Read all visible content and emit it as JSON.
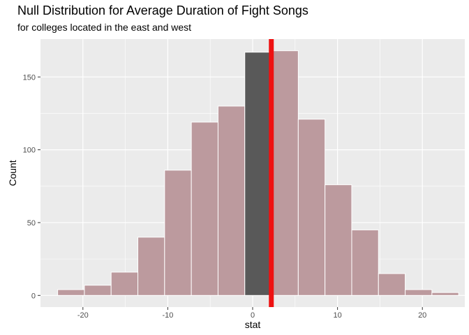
{
  "chart_data": {
    "type": "bar",
    "title": "Null Distribution for Average Duration of Fight Songs",
    "subtitle": "for colleges located in the east and west",
    "xlabel": "stat",
    "ylabel": "Count",
    "xlim": [
      -25,
      25
    ],
    "ylim": [
      -8,
      176
    ],
    "x_ticks": [
      -20,
      -10,
      0,
      10,
      20
    ],
    "y_ticks": [
      0,
      50,
      100,
      150
    ],
    "bin_width": 3.15,
    "bins": [
      {
        "center": -21.4,
        "count": 4,
        "shaded": false
      },
      {
        "center": -18.25,
        "count": 7,
        "shaded": false
      },
      {
        "center": -15.1,
        "count": 16,
        "shaded": false
      },
      {
        "center": -11.95,
        "count": 40,
        "shaded": false
      },
      {
        "center": -8.8,
        "count": 86,
        "shaded": false
      },
      {
        "center": -5.65,
        "count": 119,
        "shaded": false
      },
      {
        "center": -2.5,
        "count": 130,
        "shaded": false
      },
      {
        "center": 0.65,
        "count": 167,
        "shaded": true
      },
      {
        "center": 3.8,
        "count": 168,
        "shaded": false
      },
      {
        "center": 6.95,
        "count": 121,
        "shaded": false
      },
      {
        "center": 10.1,
        "count": 76,
        "shaded": false
      },
      {
        "center": 13.25,
        "count": 45,
        "shaded": false
      },
      {
        "center": 16.4,
        "count": 15,
        "shaded": false
      },
      {
        "center": 19.55,
        "count": 4,
        "shaded": false
      },
      {
        "center": 22.7,
        "count": 2,
        "shaded": false
      }
    ],
    "observed_stat": 2.2,
    "grid": true,
    "colors": {
      "panel": "#EBEBEB",
      "grid_major": "#FFFFFF",
      "bar_fill": "#BC9A9E",
      "bar_outline": "#FFFFFF",
      "shaded_fill": "#595959",
      "observed_line": "#EE1111"
    }
  }
}
